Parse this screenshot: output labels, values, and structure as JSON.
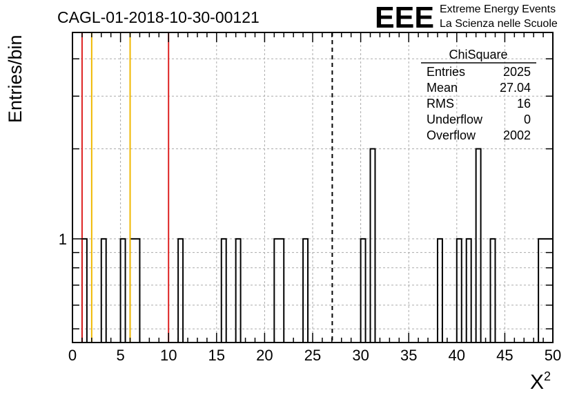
{
  "title": "CAGL-01-2018-10-30-00121",
  "logo": {
    "mark": "EEE",
    "line1": "Extreme Energy Events",
    "line2": "La Scienza nelle Scuole",
    "color": "#1a1aff"
  },
  "stats": {
    "name": "ChiSquare",
    "rows": [
      {
        "label": "Entries",
        "value": "2025"
      },
      {
        "label": "Mean",
        "value": "27.04"
      },
      {
        "label": "RMS",
        "value": "16"
      },
      {
        "label": "Underflow",
        "value": "0"
      },
      {
        "label": "Overflow",
        "value": "2002"
      }
    ]
  },
  "chart_data": {
    "type": "bar",
    "title": "CAGL-01-2018-10-30-00121",
    "xlabel": "X",
    "xlabel_sup": "2",
    "ylabel": "Entries/bin",
    "xlim": [
      0,
      50
    ],
    "ylim": [
      0.45,
      4.9
    ],
    "y_scale": "log",
    "x_ticks": [
      0,
      5,
      10,
      15,
      20,
      25,
      30,
      35,
      40,
      45,
      50
    ],
    "y_tick_labels": [
      {
        "value": 1,
        "label": "1"
      }
    ],
    "grid": true,
    "bin_width": 0.5,
    "bins": [
      {
        "x": 1.0,
        "count": 1
      },
      {
        "x": 3.0,
        "count": 1
      },
      {
        "x": 5.0,
        "count": 1
      },
      {
        "x": 6.0,
        "count": 1
      },
      {
        "x": 6.5,
        "count": 1
      },
      {
        "x": 11.0,
        "count": 1
      },
      {
        "x": 15.5,
        "count": 1
      },
      {
        "x": 17.0,
        "count": 1
      },
      {
        "x": 21.0,
        "count": 1
      },
      {
        "x": 21.5,
        "count": 1
      },
      {
        "x": 24.0,
        "count": 1
      },
      {
        "x": 30.0,
        "count": 1
      },
      {
        "x": 31.0,
        "count": 2
      },
      {
        "x": 38.0,
        "count": 1
      },
      {
        "x": 40.0,
        "count": 1
      },
      {
        "x": 41.0,
        "count": 1
      },
      {
        "x": 42.0,
        "count": 2
      },
      {
        "x": 43.5,
        "count": 1
      },
      {
        "x": 48.5,
        "count": 1
      },
      {
        "x": 49.0,
        "count": 1
      },
      {
        "x": 49.5,
        "count": 1
      }
    ],
    "vertical_lines": [
      {
        "x": 1,
        "color": "#dd2222",
        "style": "solid"
      },
      {
        "x": 2,
        "color": "#f0b800",
        "style": "solid"
      },
      {
        "x": 6,
        "color": "#f0b800",
        "style": "solid"
      },
      {
        "x": 10,
        "color": "#dd2222",
        "style": "solid"
      },
      {
        "x": 27.04,
        "color": "#000000",
        "style": "dashed"
      }
    ]
  }
}
